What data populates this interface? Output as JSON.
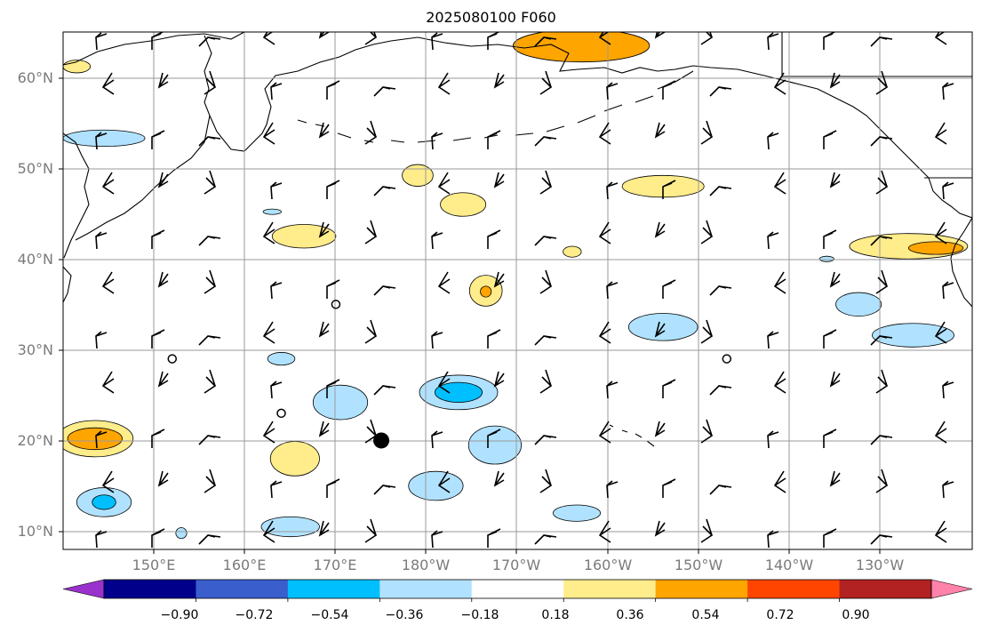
{
  "title": "2025080100 F060",
  "latitude_labels": [
    "60°N",
    "50°N",
    "40°N",
    "30°N",
    "20°N",
    "10°N"
  ],
  "longitude_labels": [
    "150°E",
    "160°E",
    "170°E",
    "180°W",
    "170°W",
    "160°W",
    "150°W",
    "140°W",
    "130°W"
  ],
  "colorbar": {
    "tick_labels": [
      "−0.90",
      "−0.72",
      "−0.54",
      "−0.36",
      "−0.18",
      "0.18",
      "0.36",
      "0.54",
      "0.72",
      "0.90"
    ],
    "colors": [
      "#9932cc",
      "#00008b",
      "#3a5fcd",
      "#00bfff",
      "#b0e2ff",
      "#ffffff",
      "#ffec8b",
      "#ffa500",
      "#ff4500",
      "#b22222",
      "#ff82ab"
    ]
  },
  "map_extent": {
    "lon_min": 140,
    "lon_max": 240,
    "lat_min": 8,
    "lat_max": 65
  },
  "storm_marker": {
    "lon": 175,
    "lat": 20
  },
  "calm_circles": [
    {
      "lon": 170,
      "lat": 35
    },
    {
      "lon": 152,
      "lat": 29
    },
    {
      "lon": 164,
      "lat": 23
    },
    {
      "lon": 213,
      "lat": 29
    }
  ],
  "contour_regions": [
    {
      "level": 0.36,
      "color": "#ffa500",
      "cx": 197,
      "cy": 63.5,
      "rx": 7.5,
      "ry": 1.8
    },
    {
      "level": 0.18,
      "color": "#ffec8b",
      "cx": 141.5,
      "cy": 61.2,
      "rx": 1.5,
      "ry": 0.7
    },
    {
      "level": -0.18,
      "color": "#b0e2ff",
      "cx": 144.5,
      "cy": 53.3,
      "rx": 4.5,
      "ry": 0.9
    },
    {
      "level": 0.18,
      "color": "#ffec8b",
      "cx": 179,
      "cy": 49.2,
      "rx": 1.7,
      "ry": 1.2
    },
    {
      "level": 0.18,
      "color": "#ffec8b",
      "cx": 184,
      "cy": 46,
      "rx": 2.5,
      "ry": 1.3
    },
    {
      "level": 0.18,
      "color": "#ffec8b",
      "cx": 206,
      "cy": 48,
      "rx": 4.5,
      "ry": 1.2
    },
    {
      "level": 0.18,
      "color": "#ffec8b",
      "cx": 166.5,
      "cy": 42.5,
      "rx": 3.5,
      "ry": 1.3
    },
    {
      "level": 0.18,
      "color": "#ffec8b",
      "cx": 233,
      "cy": 41.4,
      "rx": 6.5,
      "ry": 1.4
    },
    {
      "level": 0.36,
      "color": "#ffa500",
      "cx": 236,
      "cy": 41.2,
      "rx": 3.0,
      "ry": 0.7
    },
    {
      "level": 0.18,
      "color": "#ffec8b",
      "cx": 186.5,
      "cy": 36.5,
      "rx": 1.8,
      "ry": 1.7
    },
    {
      "level": 0.36,
      "color": "#ffa500",
      "cx": 186.5,
      "cy": 36.4,
      "rx": 0.6,
      "ry": 0.6
    },
    {
      "level": -0.18,
      "color": "#b0e2ff",
      "cx": 206,
      "cy": 32.5,
      "rx": 3.8,
      "ry": 1.5
    },
    {
      "level": -0.18,
      "color": "#b0e2ff",
      "cx": 227.5,
      "cy": 35,
      "rx": 2.5,
      "ry": 1.3
    },
    {
      "level": -0.18,
      "color": "#b0e2ff",
      "cx": 233.5,
      "cy": 31.6,
      "rx": 4.5,
      "ry": 1.3
    },
    {
      "level": -0.18,
      "color": "#b0e2ff",
      "cx": 183.5,
      "cy": 25.3,
      "rx": 4.3,
      "ry": 1.9
    },
    {
      "level": -0.36,
      "color": "#00bfff",
      "cx": 183.5,
      "cy": 25.3,
      "rx": 2.6,
      "ry": 1.1
    },
    {
      "level": -0.18,
      "color": "#b0e2ff",
      "cx": 170.5,
      "cy": 24.2,
      "rx": 3.0,
      "ry": 1.9
    },
    {
      "level": -0.18,
      "color": "#b0e2ff",
      "cx": 164,
      "cy": 29.0,
      "rx": 1.5,
      "ry": 0.7
    },
    {
      "level": 0.18,
      "color": "#ffec8b",
      "cx": 143.5,
      "cy": 20.2,
      "rx": 4.2,
      "ry": 2.0
    },
    {
      "level": 0.36,
      "color": "#ffa500",
      "cx": 143.5,
      "cy": 20.2,
      "rx": 3.0,
      "ry": 1.2
    },
    {
      "level": 0.18,
      "color": "#ffec8b",
      "cx": 165.5,
      "cy": 18.0,
      "rx": 2.7,
      "ry": 1.9
    },
    {
      "level": -0.18,
      "color": "#b0e2ff",
      "cx": 187.5,
      "cy": 19.5,
      "rx": 2.9,
      "ry": 2.1
    },
    {
      "level": -0.18,
      "color": "#b0e2ff",
      "cx": 181,
      "cy": 15.0,
      "rx": 3.0,
      "ry": 1.6
    },
    {
      "level": -0.18,
      "color": "#b0e2ff",
      "cx": 144.5,
      "cy": 13.2,
      "rx": 3.0,
      "ry": 1.6
    },
    {
      "level": -0.36,
      "color": "#00bfff",
      "cx": 144.5,
      "cy": 13.2,
      "rx": 1.3,
      "ry": 0.8
    },
    {
      "level": -0.18,
      "color": "#b0e2ff",
      "cx": 196.5,
      "cy": 12.0,
      "rx": 2.6,
      "ry": 0.9
    },
    {
      "level": -0.18,
      "color": "#b0e2ff",
      "cx": 165,
      "cy": 10.5,
      "rx": 3.2,
      "ry": 1.1
    },
    {
      "level": -0.18,
      "color": "#b0e2ff",
      "cx": 153,
      "cy": 9.8,
      "rx": 0.6,
      "ry": 0.6
    },
    {
      "level": -0.18,
      "color": "#b0e2ff",
      "cx": 163,
      "cy": 45.2,
      "rx": 1.0,
      "ry": 0.3
    },
    {
      "level": -0.18,
      "color": "#b0e2ff",
      "cx": 224,
      "cy": 40.0,
      "rx": 0.8,
      "ry": 0.3
    },
    {
      "level": 0.18,
      "color": "#ffec8b",
      "cx": 196,
      "cy": 40.8,
      "rx": 1.0,
      "ry": 0.6
    }
  ]
}
